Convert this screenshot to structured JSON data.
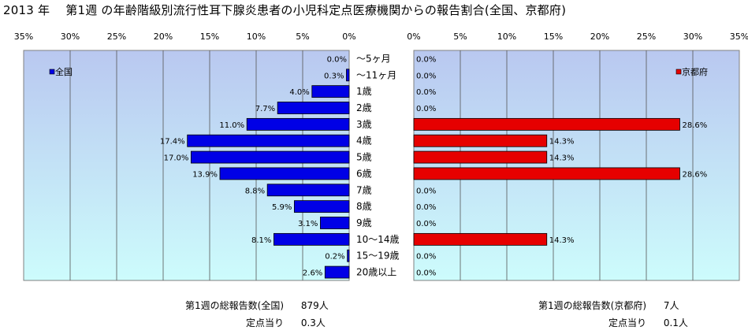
{
  "title": "2013 年　 第1週 の年齢階級別流行性耳下腺炎患者の小児科定点医療機関からの報告割合(全国、京都府)",
  "colors": {
    "national_bar": "#0000e6",
    "kyoto_bar": "#e60000",
    "plot_bg_top": "#b9c8f0",
    "plot_bg_bottom": "#cdfcfc",
    "grid": "#555555"
  },
  "chart_data": [
    {
      "type": "bar",
      "orientation": "horizontal",
      "x_direction": "reversed",
      "categories": [
        "～5ヶ月",
        "～11ヶ月",
        "1歳",
        "2歳",
        "3歳",
        "4歳",
        "5歳",
        "6歳",
        "7歳",
        "8歳",
        "9歳",
        "10～14歳",
        "15～19歳",
        "20歳以上"
      ],
      "series": [
        {
          "name": "全国",
          "values": [
            0.0,
            0.3,
            4.0,
            7.7,
            11.0,
            17.4,
            17.0,
            13.9,
            8.8,
            5.9,
            3.1,
            8.1,
            0.2,
            2.6
          ],
          "labels": [
            "0.0%",
            "0.3%",
            "4.0%",
            "7.7%",
            "11.0%",
            "17.4%",
            "17.0%",
            "13.9%",
            "8.8%",
            "5.9%",
            "3.1%",
            "8.1%",
            "0.2%",
            "2.6%"
          ]
        }
      ],
      "xlim": [
        0,
        35
      ],
      "x_ticks": [
        "35%",
        "30%",
        "25%",
        "20%",
        "15%",
        "10%",
        "5%",
        "0%"
      ],
      "grid": true,
      "legend": "top-left"
    },
    {
      "type": "bar",
      "orientation": "horizontal",
      "categories": [
        "～5ヶ月",
        "～11ヶ月",
        "1歳",
        "2歳",
        "3歳",
        "4歳",
        "5歳",
        "6歳",
        "7歳",
        "8歳",
        "9歳",
        "10～14歳",
        "15～19歳",
        "20歳以上"
      ],
      "series": [
        {
          "name": "京都府",
          "values": [
            0.0,
            0.0,
            0.0,
            0.0,
            28.6,
            14.3,
            14.3,
            28.6,
            0.0,
            0.0,
            0.0,
            14.3,
            0.0,
            0.0
          ],
          "labels": [
            "0.0%",
            "0.0%",
            "0.0%",
            "0.0%",
            "28.6%",
            "14.3%",
            "14.3%",
            "28.6%",
            "0.0%",
            "0.0%",
            "0.0%",
            "14.3%",
            "0.0%",
            "0.0%"
          ]
        }
      ],
      "xlim": [
        0,
        35
      ],
      "x_ticks": [
        "0%",
        "5%",
        "10%",
        "15%",
        "20%",
        "25%",
        "30%",
        "35%"
      ],
      "grid": true,
      "legend": "top-right"
    }
  ],
  "footer_national": {
    "total_label": "第1週の総報告数(全国)",
    "total_value": "879人",
    "per_label": "定点当り",
    "per_value": "0.3人"
  },
  "footer_kyoto": {
    "total_label": "第1週の総報告数(京都府)",
    "total_value": "7人",
    "per_label": "定点当り",
    "per_value": "0.1人"
  }
}
